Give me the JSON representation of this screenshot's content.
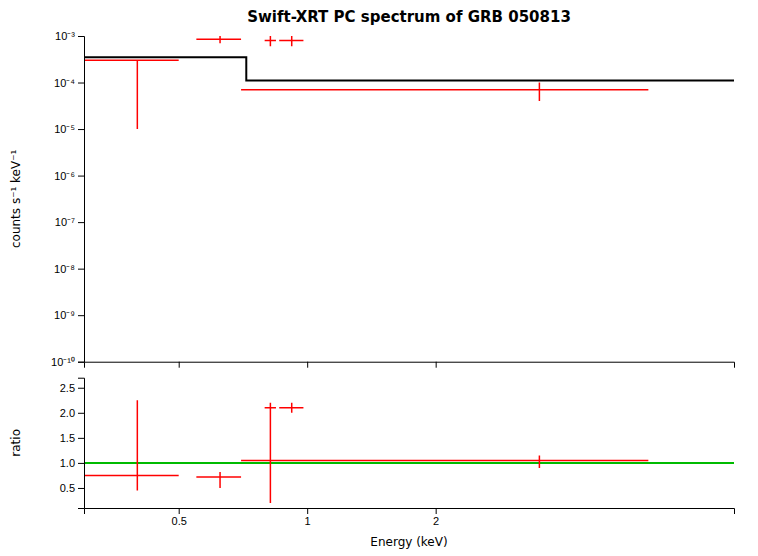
{
  "chart_data": [
    {
      "type": "line",
      "title": "Swift-XRT PC spectrum of GRB 050813",
      "y_label": "counts s⁻¹ keV⁻¹",
      "log": true,
      "xlim": [
        0.3,
        10.0
      ],
      "ylim": [
        1e-10,
        0.001
      ],
      "xticks": [
        0.5,
        1,
        2
      ],
      "yticks": [
        {
          "value": 1e-10,
          "label": "10⁻¹⁰"
        },
        {
          "value": 1e-09,
          "label": "10⁻⁹"
        },
        {
          "value": 1e-08,
          "label": "10⁻⁸"
        },
        {
          "value": 1e-07,
          "label": "10⁻⁷"
        },
        {
          "value": 1e-06,
          "label": "10⁻⁶"
        },
        {
          "value": 1e-05,
          "label": "10⁻⁵"
        },
        {
          "value": 0.0001,
          "label": "10⁻⁴"
        },
        {
          "value": 0.001,
          "label": "10⁻³"
        }
      ],
      "tick_labels": "y",
      "grid": false,
      "series": [
        {
          "type": "line",
          "color": "#000000",
          "x": [
            0.3,
            0.72,
            0.72,
            10.0
          ],
          "values": [
            0.00035,
            0.00035,
            0.00011,
            0.00011
          ]
        },
        {
          "type": "errorbar",
          "color": "#ff0000",
          "x": [
            0.4,
            0.625,
            0.82,
            0.92,
            3.5
          ],
          "values": [
            0.0003,
            0.00085,
            0.0008,
            0.0008,
            7e-05
          ],
          "xerr_lo": [
            0.1,
            0.075,
            0.025,
            0.06,
            2.8
          ],
          "xerr_hi": [
            0.1,
            0.075,
            0.025,
            0.06,
            2.8
          ],
          "yerr_lo": [
            0.00029,
            0.00015,
            0.0002,
            0.0002,
            3e-05
          ],
          "yerr_hi": [
            1e-30,
            0.00015,
            0.0002,
            0.0002,
            3e-05
          ]
        }
      ]
    },
    {
      "type": "line",
      "x_label": "Energy (keV)",
      "y_label": "ratio",
      "log": "x",
      "xlim": [
        0.3,
        10.0
      ],
      "ylim": [
        0.1,
        2.7
      ],
      "xticks": [
        0.5,
        1,
        2
      ],
      "yticks": [
        0.5,
        {
          "value": 1,
          "label": "1.0"
        },
        1.5,
        {
          "value": 2,
          "label": "2.0"
        },
        2.5
      ],
      "grid": false,
      "series": [
        {
          "type": "hline",
          "color": "#00bb00",
          "values": [
            1.0
          ]
        },
        {
          "type": "errorbar",
          "color": "#ff0000",
          "x": [
            0.4,
            0.625,
            0.82,
            0.92,
            3.5
          ],
          "values": [
            0.75,
            0.72,
            2.1,
            2.1,
            1.05
          ],
          "xerr_lo": [
            0.1,
            0.075,
            0.025,
            0.06,
            2.8
          ],
          "xerr_hi": [
            0.1,
            0.075,
            0.025,
            0.06,
            2.8
          ],
          "yerr_lo": [
            0.3,
            0.22,
            1.9,
            0.1,
            0.15
          ],
          "yerr_hi": [
            1.5,
            0.1,
            0.1,
            0.1,
            0.1
          ]
        }
      ]
    }
  ]
}
